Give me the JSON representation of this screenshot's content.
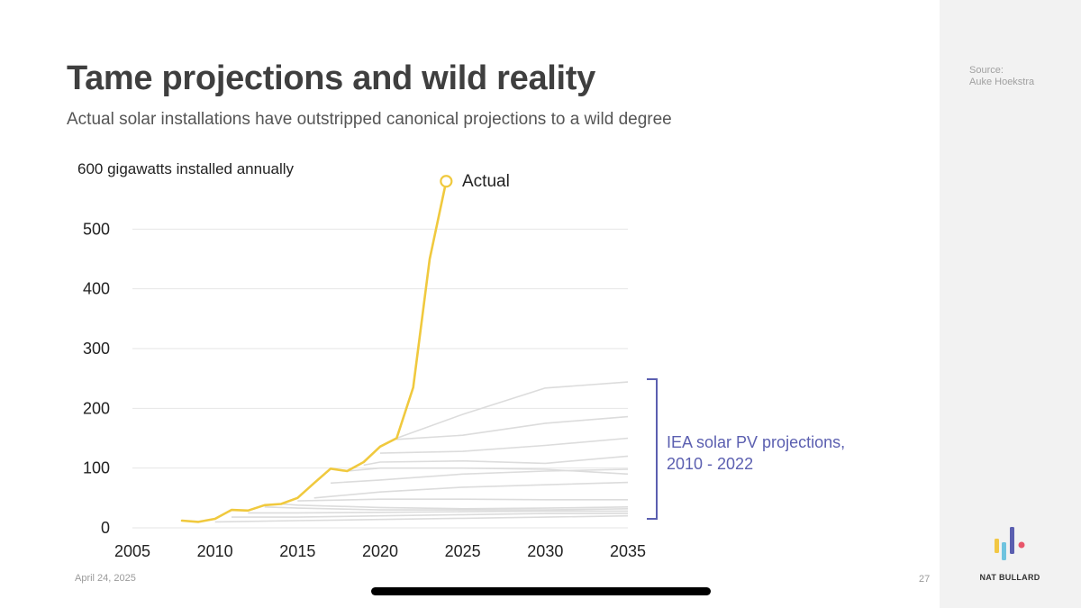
{
  "slide": {
    "title": "Tame projections and wild reality",
    "subtitle": "Actual solar installations have outstripped canonical projections to a wild degree",
    "source_label": "Source:",
    "source_name": "Auke Hoekstra",
    "date": "April 24, 2025",
    "page_number": "27",
    "brand": "NAT BULLARD"
  },
  "colors": {
    "actual": "#f0c93e",
    "projection": "#dcdcdc",
    "grid": "#e6e6e6",
    "annotation": "#5b5fb0",
    "logo": [
      "#f2c744",
      "#6fc3df",
      "#5b5fb0",
      "#e8566b"
    ]
  },
  "chart_data": {
    "type": "line",
    "title": "Tame projections and wild reality",
    "subtitle": "Actual solar installations have outstripped canonical projections to a wild degree",
    "ylabel": "600 gigawatts installed annually",
    "xlabel": "",
    "xlim": [
      2005,
      2035
    ],
    "ylim": [
      0,
      600
    ],
    "x_ticks": [
      "2005",
      "2010",
      "2015",
      "2020",
      "2025",
      "2030",
      "2035"
    ],
    "y_ticks": [
      "0",
      "100",
      "200",
      "300",
      "400",
      "500"
    ],
    "grid": true,
    "actual": {
      "name": "Actual",
      "x": [
        2008,
        2009,
        2010,
        2011,
        2012,
        2013,
        2014,
        2015,
        2016,
        2017,
        2018,
        2019,
        2020,
        2021,
        2022,
        2023,
        2024
      ],
      "y": [
        12,
        10,
        15,
        30,
        29,
        38,
        40,
        50,
        75,
        99,
        95,
        110,
        136,
        150,
        235,
        450,
        580
      ]
    },
    "projections_label": "IEA solar PV projections, 2010 - 2022",
    "projections": [
      {
        "x": [
          2010,
          2015,
          2020,
          2025,
          2030,
          2035
        ],
        "y": [
          10,
          12,
          14,
          16,
          18,
          20
        ]
      },
      {
        "x": [
          2011,
          2015,
          2020,
          2025,
          2030,
          2035
        ],
        "y": [
          18,
          18,
          20,
          22,
          24,
          24
        ]
      },
      {
        "x": [
          2012,
          2015,
          2020,
          2025,
          2030,
          2035
        ],
        "y": [
          25,
          25,
          26,
          27,
          28,
          28
        ]
      },
      {
        "x": [
          2013,
          2015,
          2020,
          2025,
          2030,
          2035
        ],
        "y": [
          35,
          33,
          30,
          30,
          30,
          32
        ]
      },
      {
        "x": [
          2014,
          2015,
          2020,
          2025,
          2030,
          2035
        ],
        "y": [
          40,
          38,
          34,
          32,
          33,
          35
        ]
      },
      {
        "x": [
          2015,
          2020,
          2025,
          2030,
          2035
        ],
        "y": [
          45,
          48,
          48,
          47,
          47
        ]
      },
      {
        "x": [
          2016,
          2020,
          2025,
          2030,
          2035
        ],
        "y": [
          50,
          60,
          68,
          72,
          76
        ]
      },
      {
        "x": [
          2017,
          2020,
          2025,
          2030,
          2035
        ],
        "y": [
          75,
          80,
          90,
          95,
          98
        ]
      },
      {
        "x": [
          2018,
          2020,
          2025,
          2030,
          2035
        ],
        "y": [
          95,
          100,
          100,
          98,
          90
        ]
      },
      {
        "x": [
          2019,
          2020,
          2025,
          2030,
          2035
        ],
        "y": [
          105,
          110,
          112,
          108,
          120
        ]
      },
      {
        "x": [
          2020,
          2025,
          2030,
          2035
        ],
        "y": [
          125,
          128,
          138,
          150
        ]
      },
      {
        "x": [
          2021,
          2025,
          2030,
          2035
        ],
        "y": [
          148,
          155,
          175,
          186
        ]
      },
      {
        "x": [
          2021,
          2025,
          2030,
          2035
        ],
        "y": [
          150,
          190,
          234,
          244
        ]
      }
    ]
  }
}
